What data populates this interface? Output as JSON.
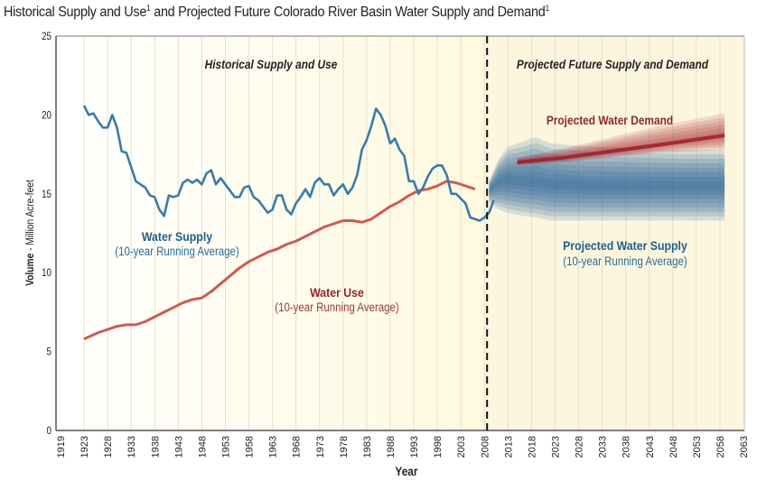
{
  "title": {
    "text": "Historical Supply and Use",
    "sup1": "1",
    "middle": " and Projected Future Colorado River Basin Water Supply and Demand",
    "sup2": "1"
  },
  "chart_data": {
    "type": "line",
    "xlabel": "Year",
    "ylabel_bold": "Volume",
    "ylabel_rest": " - Million Acre-feet",
    "ylim": [
      0,
      25
    ],
    "yticks": [
      0,
      5,
      10,
      15,
      20,
      25
    ],
    "xticks": [
      "1919",
      "1923",
      "1928",
      "1933",
      "1938",
      "1943",
      "1948",
      "1953",
      "1958",
      "1963",
      "1968",
      "1973",
      "1978",
      "1983",
      "1988",
      "1993",
      "1998",
      "2003",
      "2008",
      "2013",
      "2018",
      "2023",
      "2028",
      "2033",
      "2038",
      "2043",
      "2048",
      "2053",
      "2058",
      "2063"
    ],
    "grid": "vertical",
    "divider_year": 2008,
    "region_labels": {
      "historical": "Historical Supply and Use",
      "projected": "Projected Future Supply and Demand"
    },
    "colors": {
      "supply": "#3a7ca8",
      "use": "#cf5a52",
      "demand": "#a3202c",
      "projected_supply": "#1f5f94",
      "background_projected": "#fdf6df"
    },
    "annotations": {
      "water_supply": "Water Supply",
      "water_supply_sub": "(10-year Running Average)",
      "water_use": "Water Use",
      "water_use_sub": "(10-year Running Average)",
      "projected_demand": "Projected Water Demand",
      "projected_supply": "Projected Water Supply",
      "projected_supply_sub": "(10-year Running Average)"
    },
    "series": [
      {
        "name": "Water Supply (10-year Running Average)",
        "x_start": 1923,
        "values": [
          20.6,
          20.0,
          20.1,
          19.6,
          19.2,
          19.2,
          20.0,
          19.2,
          17.7,
          17.6,
          16.7,
          15.8,
          15.6,
          15.4,
          14.9,
          14.8,
          14.0,
          13.6,
          14.9,
          14.8,
          14.9,
          15.7,
          15.9,
          15.7,
          15.9,
          15.6,
          16.3,
          16.5,
          15.6,
          16.0,
          15.6,
          15.2,
          14.8,
          14.8,
          15.4,
          15.5,
          14.8,
          14.6,
          14.2,
          13.8,
          14.0,
          14.9,
          14.9,
          14.0,
          13.7,
          14.4,
          14.8,
          15.3,
          14.8,
          15.7,
          16.0,
          15.6,
          15.6,
          14.9,
          15.3,
          15.6,
          15.0,
          15.4,
          16.2,
          17.8,
          18.4,
          19.3,
          20.4,
          20.0,
          19.3,
          18.2,
          18.5,
          17.8,
          17.4,
          15.8,
          15.8,
          15.0,
          15.4,
          16.1,
          16.6,
          16.8,
          16.8,
          16.2,
          15.0,
          15.0,
          14.7,
          14.4,
          13.5,
          13.4,
          13.3,
          13.5,
          13.8,
          14.6
        ]
      },
      {
        "name": "Water Use (10-year Running Average)",
        "x": [
          1923,
          1926,
          1928,
          1930,
          1932,
          1934,
          1936,
          1938,
          1940,
          1942,
          1944,
          1946,
          1948,
          1950,
          1952,
          1954,
          1956,
          1958,
          1960,
          1962,
          1964,
          1966,
          1968,
          1970,
          1972,
          1974,
          1976,
          1978,
          1980,
          1982,
          1984,
          1986,
          1988,
          1990,
          1992,
          1994,
          1996,
          1998,
          2000,
          2002,
          2004,
          2006
        ],
        "values": [
          5.8,
          6.2,
          6.4,
          6.6,
          6.7,
          6.7,
          6.9,
          7.2,
          7.5,
          7.8,
          8.1,
          8.3,
          8.4,
          8.8,
          9.3,
          9.8,
          10.3,
          10.7,
          11.0,
          11.3,
          11.5,
          11.8,
          12.0,
          12.3,
          12.6,
          12.9,
          13.1,
          13.3,
          13.3,
          13.2,
          13.4,
          13.8,
          14.2,
          14.5,
          14.9,
          15.2,
          15.3,
          15.5,
          15.8,
          15.7,
          15.5,
          15.3
        ]
      },
      {
        "name": "Projected Water Demand",
        "x": [
          2015,
          2025,
          2035,
          2045,
          2059
        ],
        "values": [
          17.0,
          17.3,
          17.7,
          18.1,
          18.7
        ],
        "band_high": [
          17.3,
          17.9,
          18.6,
          19.3,
          20.1
        ],
        "band_low": [
          16.8,
          17.0,
          17.3,
          17.6,
          17.8
        ]
      },
      {
        "name": "Projected Water Supply (10-year Running Average)",
        "x": [
          2009,
          2011,
          2013,
          2016,
          2019,
          2022,
          2030,
          2040,
          2050,
          2059
        ],
        "values": [
          15.3,
          15.8,
          15.9,
          15.8,
          15.7,
          15.6,
          15.5,
          15.5,
          15.5,
          15.5
        ],
        "band_high": [
          15.8,
          17.2,
          18.0,
          18.3,
          18.6,
          18.2,
          18.0,
          17.9,
          17.8,
          17.8
        ],
        "band_low": [
          14.4,
          14.0,
          13.8,
          13.6,
          13.5,
          13.3,
          13.3,
          13.3,
          13.3,
          13.3
        ]
      }
    ]
  }
}
